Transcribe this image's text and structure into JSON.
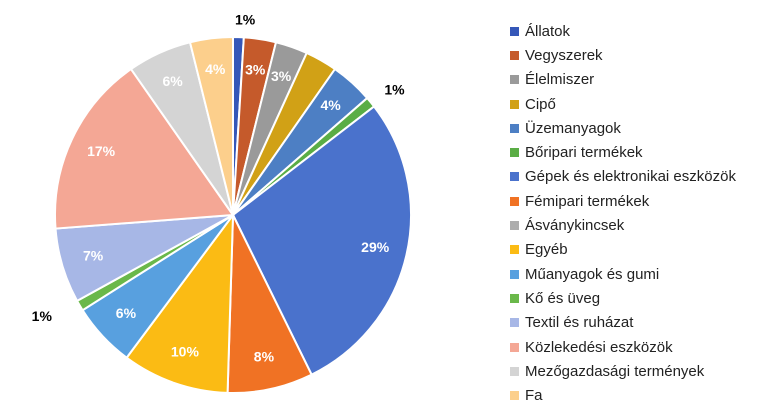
{
  "chart_data": {
    "type": "pie",
    "title": "",
    "slices": [
      {
        "name": "Állatok",
        "value": 1,
        "label": "1%",
        "color": "#3557b8"
      },
      {
        "name": "Vegyszerek",
        "value": 3,
        "label": "3%",
        "color": "#c55a2b"
      },
      {
        "name": "Élelmiszer",
        "value": 3,
        "label": "3%",
        "color": "#9a9a9a"
      },
      {
        "name": "Cipő",
        "value": 3,
        "label": "",
        "color": "#d1a116"
      },
      {
        "name": "Üzemanyagok",
        "value": 4,
        "label": "4%",
        "color": "#4d7fc4"
      },
      {
        "name": "Bőripari termékek",
        "value": 1,
        "label": "1%",
        "color": "#5aad45"
      },
      {
        "name": "Gépek és elektronikai eszközök",
        "value": 29,
        "label": "29%",
        "color": "#4a72cc"
      },
      {
        "name": "Fémipari termékek",
        "value": 8,
        "label": "8%",
        "color": "#f07224"
      },
      {
        "name": "Ásványkincsek",
        "value": 0,
        "label": "",
        "color": "#adadad"
      },
      {
        "name": "Egyéb",
        "value": 10,
        "label": "10%",
        "color": "#fbbb14"
      },
      {
        "name": "Műanyagok és gumi",
        "value": 6,
        "label": "6%",
        "color": "#58a0df"
      },
      {
        "name": "Kő és üveg",
        "value": 1,
        "label": "1%",
        "color": "#6ab84a"
      },
      {
        "name": "Textil és ruházat",
        "value": 7,
        "label": "7%",
        "color": "#a7b7e6"
      },
      {
        "name": "Közlekedési eszközök",
        "value": 17,
        "label": "17%",
        "color": "#f4a795"
      },
      {
        "name": "Mezőgazdasági termények",
        "value": 6,
        "label": "6%",
        "color": "#d4d4d4"
      },
      {
        "name": "Fa",
        "value": 4,
        "label": "4%",
        "color": "#fccf8c"
      }
    ],
    "legend_position": "right"
  }
}
